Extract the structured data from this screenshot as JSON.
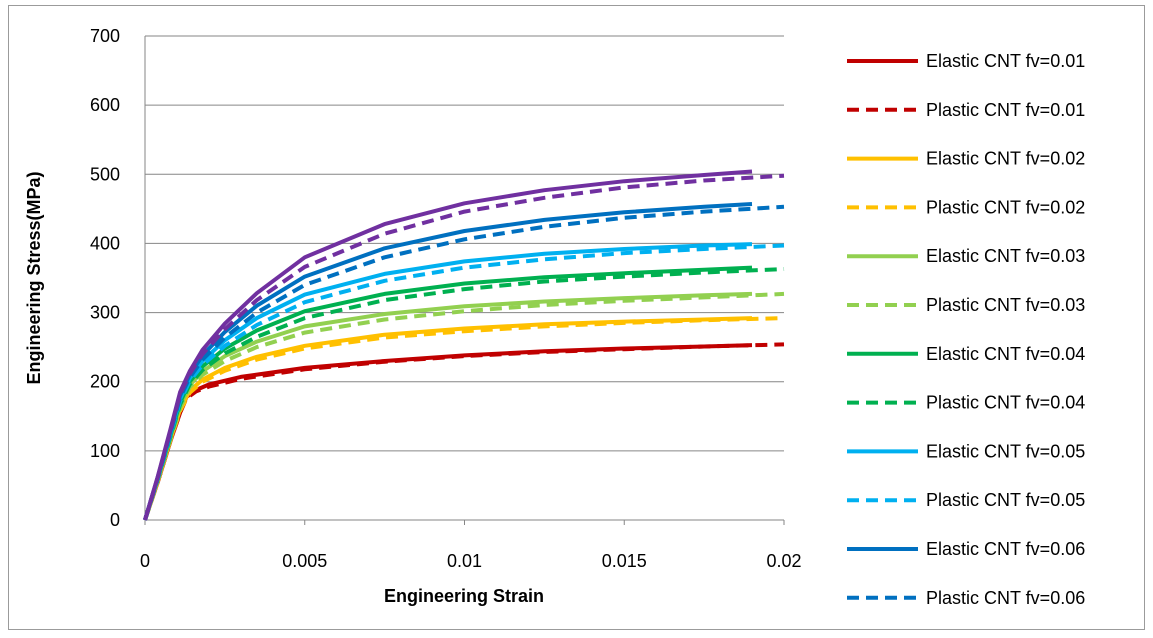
{
  "chart_data": {
    "type": "line",
    "title": "",
    "xlabel": "Engineering Strain",
    "ylabel": "Engineering Stress(MPa)",
    "xlim": [
      0,
      0.02
    ],
    "ylim": [
      0,
      700
    ],
    "x_ticks": [
      "0",
      "0.005",
      "0.01",
      "0.015",
      "0.02"
    ],
    "y_ticks": [
      "0",
      "100",
      "200",
      "300",
      "400",
      "500",
      "600",
      "700"
    ],
    "grid": "horizontal",
    "legend_position": "right",
    "series": [
      {
        "name": "Elastic CNT fv=0.01",
        "color": "#c00000",
        "style": "solid",
        "points": [
          [
            0,
            0
          ],
          [
            0.0004,
            55
          ],
          [
            0.0008,
            115
          ],
          [
            0.0011,
            155
          ],
          [
            0.0013,
            178
          ],
          [
            0.0016,
            188
          ],
          [
            0.002,
            196
          ],
          [
            0.003,
            207
          ],
          [
            0.005,
            220
          ],
          [
            0.0075,
            230
          ],
          [
            0.01,
            238
          ],
          [
            0.0125,
            244
          ],
          [
            0.015,
            248
          ],
          [
            0.0175,
            251
          ],
          [
            0.019,
            253
          ]
        ]
      },
      {
        "name": "Plastic CNT fv=0.01",
        "color": "#c00000",
        "style": "dashed",
        "points": [
          [
            0,
            0
          ],
          [
            0.0004,
            55
          ],
          [
            0.0008,
            115
          ],
          [
            0.0011,
            155
          ],
          [
            0.0013,
            176
          ],
          [
            0.0016,
            186
          ],
          [
            0.002,
            193
          ],
          [
            0.003,
            204
          ],
          [
            0.005,
            218
          ],
          [
            0.0075,
            229
          ],
          [
            0.01,
            237
          ],
          [
            0.0125,
            243
          ],
          [
            0.015,
            247
          ],
          [
            0.0175,
            251
          ],
          [
            0.02,
            254
          ]
        ]
      },
      {
        "name": "Elastic CNT fv=0.02",
        "color": "#ffc000",
        "style": "solid",
        "points": [
          [
            0,
            0
          ],
          [
            0.0004,
            56
          ],
          [
            0.0008,
            117
          ],
          [
            0.0011,
            160
          ],
          [
            0.0014,
            187
          ],
          [
            0.0018,
            203
          ],
          [
            0.0025,
            220
          ],
          [
            0.0035,
            236
          ],
          [
            0.005,
            252
          ],
          [
            0.0075,
            268
          ],
          [
            0.01,
            277
          ],
          [
            0.0125,
            283
          ],
          [
            0.015,
            287
          ],
          [
            0.0175,
            290
          ],
          [
            0.019,
            292
          ]
        ]
      },
      {
        "name": "Plastic CNT fv=0.02",
        "color": "#ffc000",
        "style": "dashed",
        "points": [
          [
            0,
            0
          ],
          [
            0.0004,
            56
          ],
          [
            0.0008,
            116
          ],
          [
            0.0011,
            158
          ],
          [
            0.0014,
            184
          ],
          [
            0.0018,
            200
          ],
          [
            0.0025,
            216
          ],
          [
            0.0035,
            232
          ],
          [
            0.005,
            248
          ],
          [
            0.0075,
            264
          ],
          [
            0.01,
            273
          ],
          [
            0.0125,
            280
          ],
          [
            0.015,
            285
          ],
          [
            0.0175,
            289
          ],
          [
            0.02,
            292
          ]
        ]
      },
      {
        "name": "Elastic CNT fv=0.03",
        "color": "#92d050",
        "style": "solid",
        "points": [
          [
            0,
            0
          ],
          [
            0.0004,
            58
          ],
          [
            0.0008,
            120
          ],
          [
            0.0011,
            165
          ],
          [
            0.0014,
            195
          ],
          [
            0.0018,
            215
          ],
          [
            0.0025,
            237
          ],
          [
            0.0035,
            258
          ],
          [
            0.005,
            280
          ],
          [
            0.0075,
            298
          ],
          [
            0.01,
            309
          ],
          [
            0.0125,
            316
          ],
          [
            0.015,
            321
          ],
          [
            0.0175,
            325
          ],
          [
            0.019,
            327
          ]
        ]
      },
      {
        "name": "Plastic CNT fv=0.03",
        "color": "#92d050",
        "style": "dashed",
        "points": [
          [
            0,
            0
          ],
          [
            0.0004,
            57
          ],
          [
            0.0008,
            118
          ],
          [
            0.0011,
            162
          ],
          [
            0.0014,
            192
          ],
          [
            0.0018,
            210
          ],
          [
            0.0025,
            230
          ],
          [
            0.0035,
            250
          ],
          [
            0.005,
            271
          ],
          [
            0.0075,
            290
          ],
          [
            0.01,
            302
          ],
          [
            0.0125,
            311
          ],
          [
            0.015,
            317
          ],
          [
            0.0175,
            322
          ],
          [
            0.02,
            327
          ]
        ]
      },
      {
        "name": "Elastic CNT fv=0.04",
        "color": "#00b050",
        "style": "solid",
        "points": [
          [
            0,
            0
          ],
          [
            0.0004,
            60
          ],
          [
            0.0008,
            123
          ],
          [
            0.0011,
            170
          ],
          [
            0.0014,
            200
          ],
          [
            0.0018,
            222
          ],
          [
            0.0025,
            248
          ],
          [
            0.0035,
            274
          ],
          [
            0.005,
            302
          ],
          [
            0.0075,
            327
          ],
          [
            0.01,
            342
          ],
          [
            0.0125,
            351
          ],
          [
            0.015,
            357
          ],
          [
            0.0175,
            362
          ],
          [
            0.019,
            365
          ]
        ]
      },
      {
        "name": "Plastic CNT fv=0.04",
        "color": "#00b050",
        "style": "dashed",
        "points": [
          [
            0,
            0
          ],
          [
            0.0004,
            59
          ],
          [
            0.0008,
            121
          ],
          [
            0.0011,
            167
          ],
          [
            0.0014,
            196
          ],
          [
            0.0018,
            217
          ],
          [
            0.0025,
            241
          ],
          [
            0.0035,
            265
          ],
          [
            0.005,
            292
          ],
          [
            0.0075,
            318
          ],
          [
            0.01,
            334
          ],
          [
            0.0125,
            345
          ],
          [
            0.015,
            352
          ],
          [
            0.0175,
            358
          ],
          [
            0.02,
            363
          ]
        ]
      },
      {
        "name": "Elastic CNT fv=0.05",
        "color": "#00b0f0",
        "style": "solid",
        "points": [
          [
            0,
            0
          ],
          [
            0.0004,
            61
          ],
          [
            0.0008,
            126
          ],
          [
            0.0011,
            175
          ],
          [
            0.0014,
            205
          ],
          [
            0.0018,
            230
          ],
          [
            0.0025,
            260
          ],
          [
            0.0035,
            292
          ],
          [
            0.005,
            326
          ],
          [
            0.0075,
            356
          ],
          [
            0.01,
            374
          ],
          [
            0.0125,
            385
          ],
          [
            0.015,
            392
          ],
          [
            0.0175,
            397
          ],
          [
            0.019,
            399
          ]
        ]
      },
      {
        "name": "Plastic CNT fv=0.05",
        "color": "#00b0f0",
        "style": "dashed",
        "points": [
          [
            0,
            0
          ],
          [
            0.0004,
            60
          ],
          [
            0.0008,
            124
          ],
          [
            0.0011,
            172
          ],
          [
            0.0014,
            201
          ],
          [
            0.0018,
            224
          ],
          [
            0.0025,
            252
          ],
          [
            0.0035,
            282
          ],
          [
            0.005,
            315
          ],
          [
            0.0075,
            346
          ],
          [
            0.01,
            365
          ],
          [
            0.0125,
            377
          ],
          [
            0.015,
            386
          ],
          [
            0.0175,
            392
          ],
          [
            0.02,
            397
          ]
        ]
      },
      {
        "name": "Elastic CNT fv=0.06",
        "color": "#0070c0",
        "style": "solid",
        "points": [
          [
            0,
            0
          ],
          [
            0.0004,
            62
          ],
          [
            0.0008,
            129
          ],
          [
            0.0011,
            180
          ],
          [
            0.0014,
            210
          ],
          [
            0.0018,
            238
          ],
          [
            0.0025,
            272
          ],
          [
            0.0035,
            310
          ],
          [
            0.005,
            352
          ],
          [
            0.0075,
            393
          ],
          [
            0.01,
            418
          ],
          [
            0.0125,
            434
          ],
          [
            0.015,
            445
          ],
          [
            0.0175,
            453
          ],
          [
            0.019,
            457
          ]
        ]
      },
      {
        "name": "Plastic CNT fv=0.06",
        "color": "#0070c0",
        "style": "dashed",
        "points": [
          [
            0,
            0
          ],
          [
            0.0004,
            61
          ],
          [
            0.0008,
            127
          ],
          [
            0.0011,
            177
          ],
          [
            0.0014,
            206
          ],
          [
            0.0018,
            232
          ],
          [
            0.0025,
            264
          ],
          [
            0.0035,
            300
          ],
          [
            0.005,
            340
          ],
          [
            0.0075,
            380
          ],
          [
            0.01,
            406
          ],
          [
            0.0125,
            424
          ],
          [
            0.015,
            437
          ],
          [
            0.0175,
            446
          ],
          [
            0.02,
            453
          ]
        ]
      },
      {
        "name": "",
        "color": "#7030a0",
        "style": "solid",
        "points": [
          [
            0,
            0
          ],
          [
            0.0004,
            63
          ],
          [
            0.0008,
            132
          ],
          [
            0.0011,
            185
          ],
          [
            0.0014,
            215
          ],
          [
            0.0018,
            246
          ],
          [
            0.0025,
            284
          ],
          [
            0.0035,
            328
          ],
          [
            0.005,
            380
          ],
          [
            0.0075,
            428
          ],
          [
            0.01,
            458
          ],
          [
            0.0125,
            477
          ],
          [
            0.015,
            490
          ],
          [
            0.0175,
            499
          ],
          [
            0.019,
            504
          ]
        ]
      },
      {
        "name": "",
        "color": "#7030a0",
        "style": "dashed",
        "points": [
          [
            0,
            0
          ],
          [
            0.0004,
            62
          ],
          [
            0.0008,
            130
          ],
          [
            0.0011,
            182
          ],
          [
            0.0014,
            211
          ],
          [
            0.0018,
            240
          ],
          [
            0.0025,
            276
          ],
          [
            0.0035,
            318
          ],
          [
            0.005,
            366
          ],
          [
            0.0075,
            414
          ],
          [
            0.01,
            446
          ],
          [
            0.0125,
            466
          ],
          [
            0.015,
            481
          ],
          [
            0.0175,
            491
          ],
          [
            0.02,
            498
          ]
        ]
      }
    ]
  }
}
